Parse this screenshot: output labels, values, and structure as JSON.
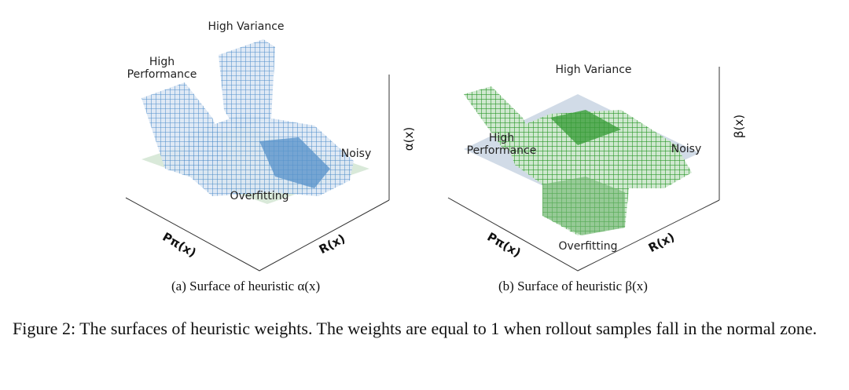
{
  "figure": {
    "panels": [
      {
        "labels": {
          "high_variance": "High Variance",
          "high_performance": "High Performance",
          "noisy": "Noisy",
          "overfitting": "Overfitting"
        },
        "axes": {
          "z": "α(x)",
          "x": "Pπ(x)",
          "y": "R(x)"
        },
        "caption": "(a) Surface of heuristic α(x)"
      },
      {
        "labels": {
          "high_variance": "High Variance",
          "high_performance": "High Performance",
          "noisy": "Noisy",
          "overfitting": "Overfitting"
        },
        "axes": {
          "z": "β(x)",
          "x": "Pπ(x)",
          "y": "R(x)"
        },
        "caption": "(b) Surface of heuristic β(x)"
      }
    ],
    "caption": "Figure 2: The surfaces of heuristic weights. The weights are equal to 1 when rollout samples fall in the normal zone."
  }
}
